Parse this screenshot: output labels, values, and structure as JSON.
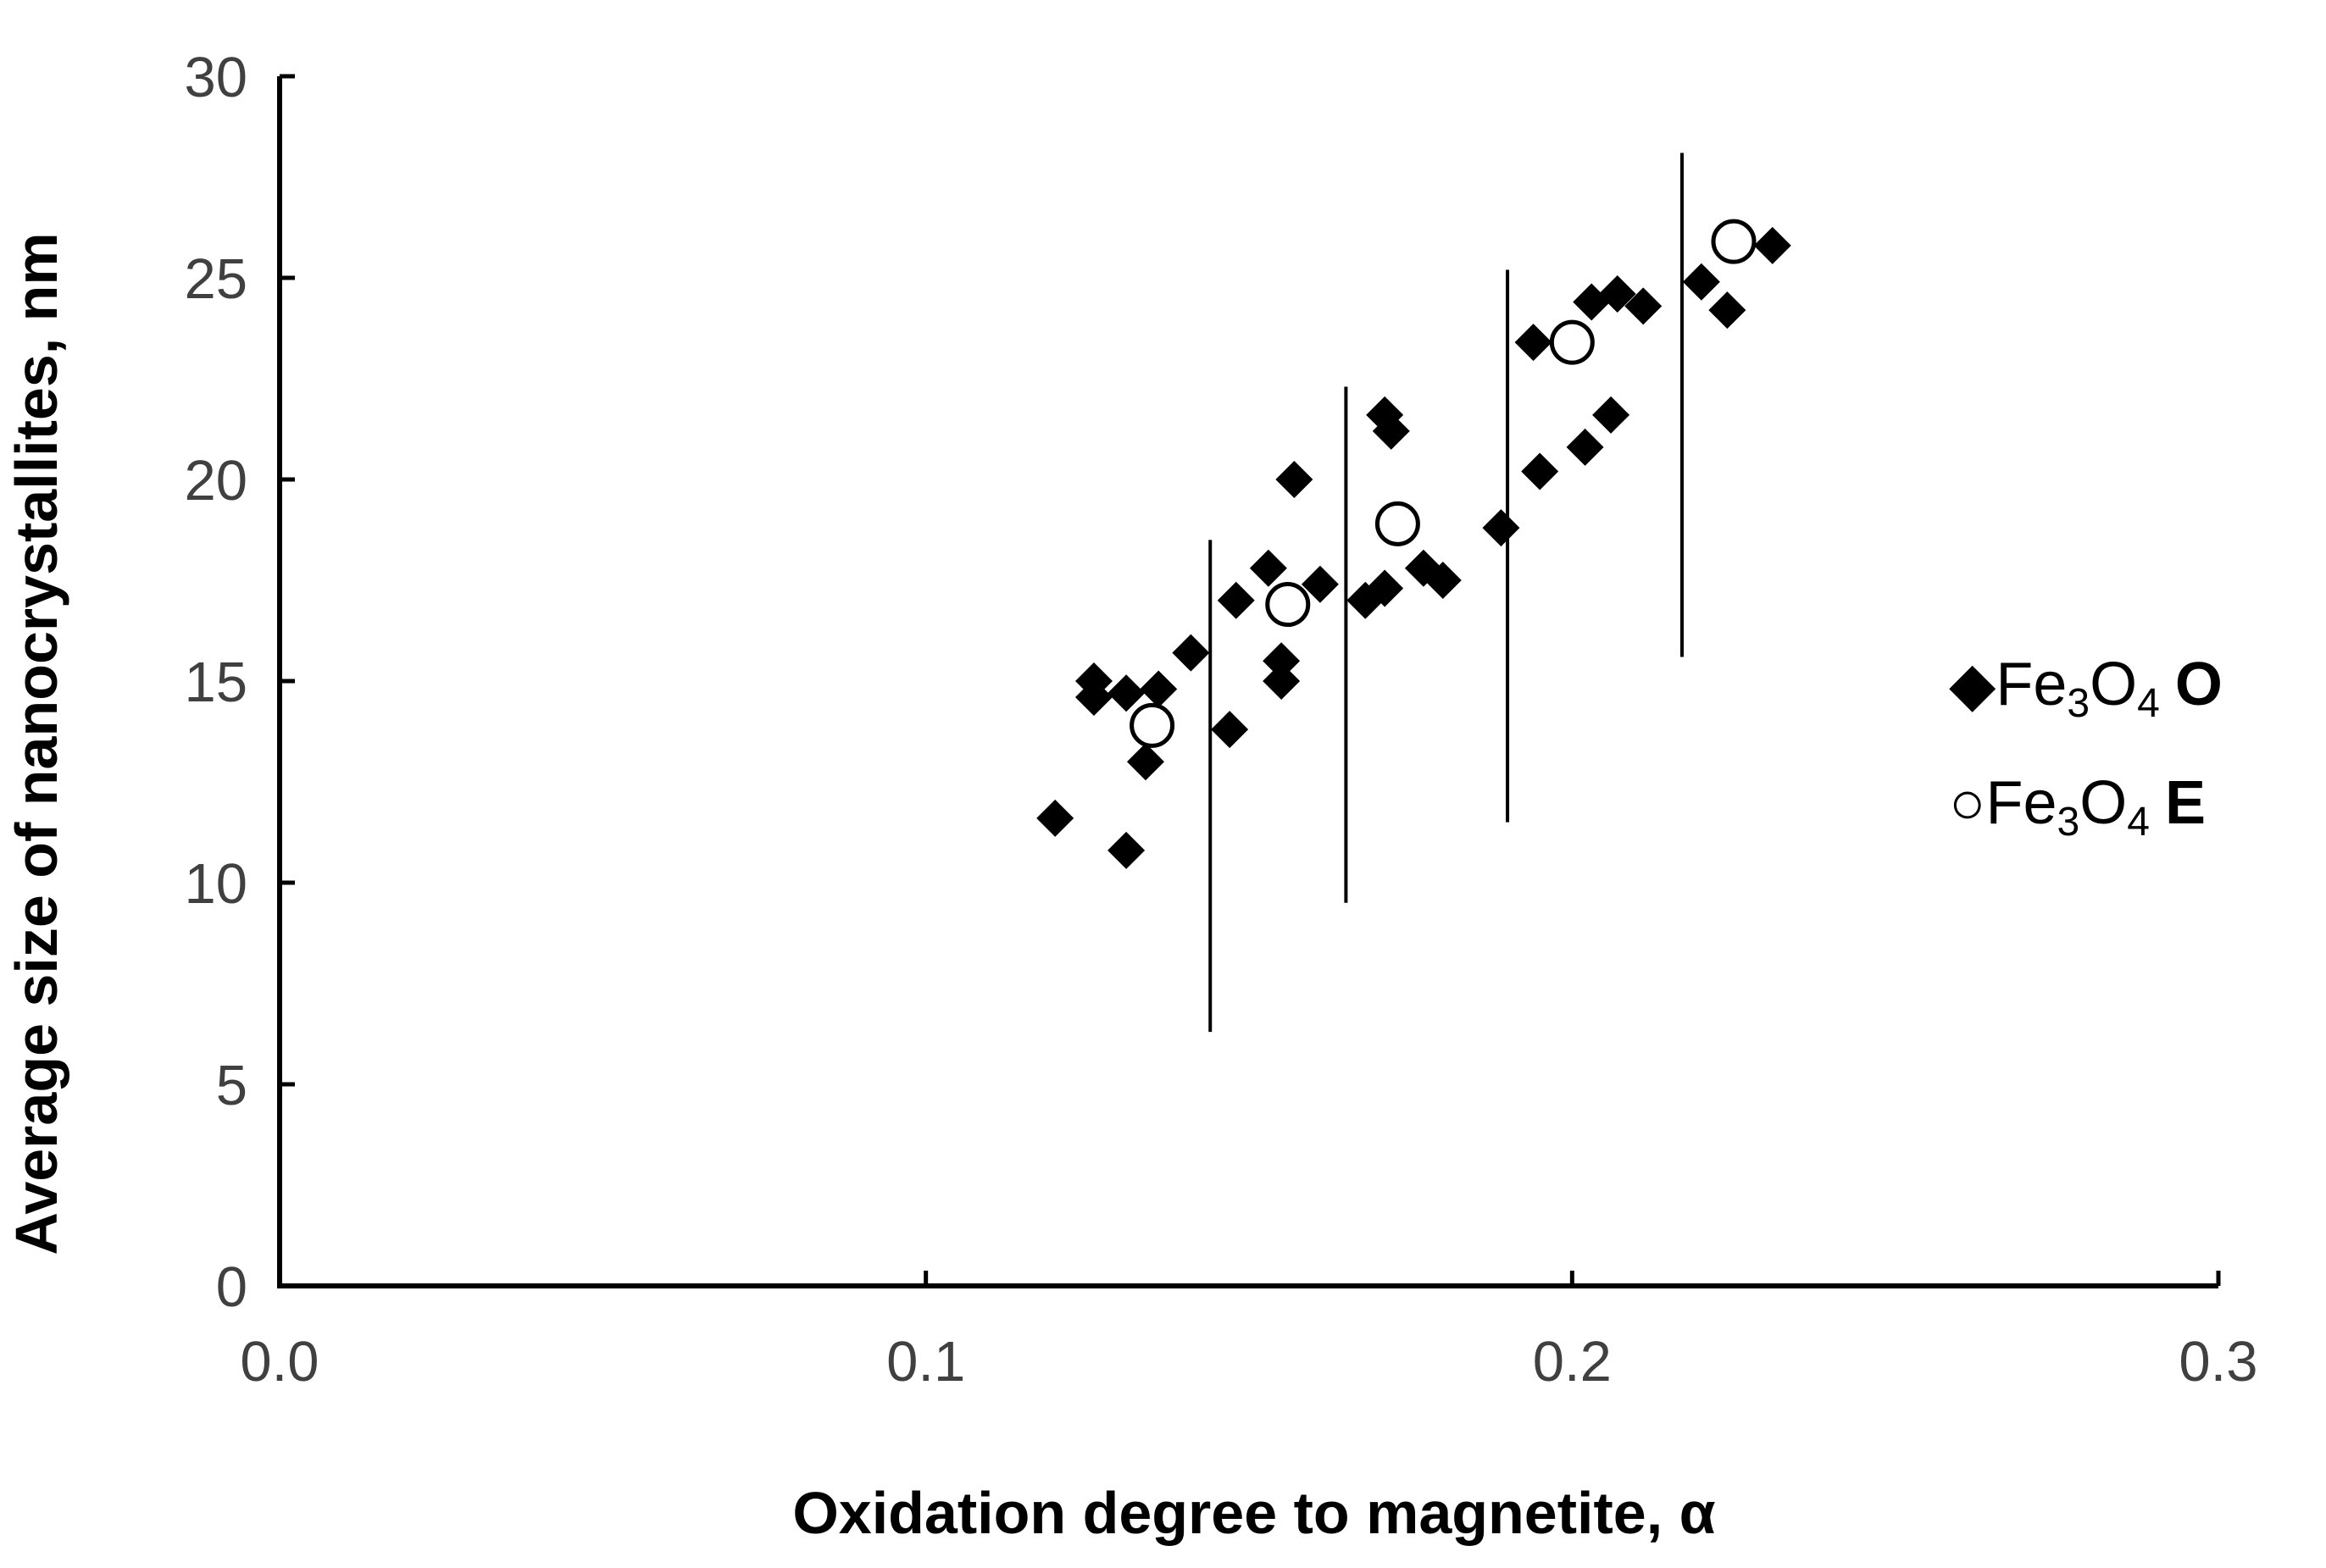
{
  "chart_data": {
    "type": "scatter",
    "title": "",
    "xlabel": "Oxidation degree to magnetite, α",
    "ylabel": "Average size of nanocrystallites, nm",
    "xlim": [
      0.0,
      0.3
    ],
    "ylim": [
      0,
      30
    ],
    "x_ticks": [
      0.0,
      0.1,
      0.2,
      0.3
    ],
    "x_tick_labels": [
      "0.0",
      "0.1",
      "0.2",
      "0.3"
    ],
    "y_ticks": [
      0,
      5,
      10,
      15,
      20,
      25,
      30
    ],
    "y_tick_labels": [
      "0",
      "5",
      "10",
      "15",
      "20",
      "25",
      "30"
    ],
    "grid": false,
    "legend_position": "right",
    "series": [
      {
        "name": "Fe3O4 O",
        "legend": {
          "symbol": "◆",
          "base": "Fe",
          "sub1": "3",
          "mid": "O",
          "sub2": "4",
          "tag": "O"
        },
        "marker": "diamond-filled",
        "color": "#000000",
        "points": [
          [
            0.12,
            11.6
          ],
          [
            0.126,
            15.0
          ],
          [
            0.126,
            14.6
          ],
          [
            0.131,
            14.7
          ],
          [
            0.131,
            10.8
          ],
          [
            0.134,
            13.0
          ],
          [
            0.136,
            14.8
          ],
          [
            0.141,
            15.7
          ],
          [
            0.147,
            13.8
          ],
          [
            0.148,
            17.0
          ],
          [
            0.153,
            17.8
          ],
          [
            0.155,
            15.0
          ],
          [
            0.155,
            15.5
          ],
          [
            0.157,
            20.0
          ],
          [
            0.161,
            17.4
          ],
          [
            0.168,
            17.0
          ],
          [
            0.171,
            17.3
          ],
          [
            0.171,
            21.6
          ],
          [
            0.172,
            21.2
          ],
          [
            0.177,
            17.8
          ],
          [
            0.18,
            17.5
          ],
          [
            0.189,
            18.8
          ],
          [
            0.194,
            23.4
          ],
          [
            0.195,
            20.2
          ],
          [
            0.202,
            20.8
          ],
          [
            0.203,
            24.4
          ],
          [
            0.206,
            21.6
          ],
          [
            0.207,
            24.6
          ],
          [
            0.211,
            24.3
          ],
          [
            0.22,
            24.9
          ],
          [
            0.224,
            24.2
          ],
          [
            0.231,
            25.8
          ]
        ]
      },
      {
        "name": "Fe3O4 E",
        "legend": {
          "symbol": "○",
          "base": "Fe",
          "sub1": "3",
          "mid": "O",
          "sub2": "4",
          "tag": "E"
        },
        "marker": "circle-open",
        "color": "#000000",
        "points": [
          [
            0.135,
            13.9
          ],
          [
            0.156,
            16.9
          ],
          [
            0.173,
            18.9
          ],
          [
            0.2,
            23.4
          ],
          [
            0.225,
            25.9
          ]
        ]
      }
    ],
    "reference_lines": [
      {
        "x": 0.144,
        "y_min": 6.3,
        "y_max": 18.5
      },
      {
        "x": 0.165,
        "y_min": 9.5,
        "y_max": 22.3
      },
      {
        "x": 0.19,
        "y_min": 11.5,
        "y_max": 25.2
      },
      {
        "x": 0.217,
        "y_min": 15.6,
        "y_max": 28.1
      }
    ]
  }
}
